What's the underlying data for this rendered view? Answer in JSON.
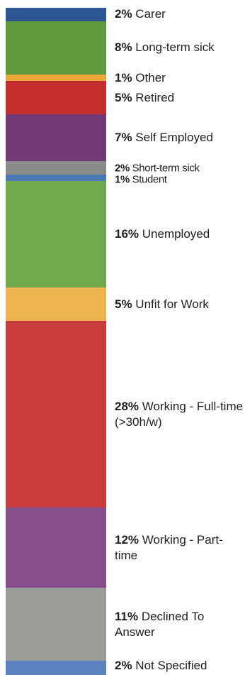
{
  "chart_data": {
    "type": "bar",
    "orientation": "stacked-vertical",
    "title": "",
    "xlabel": "",
    "ylabel": "",
    "total_percent": 100,
    "categories": [
      "Carer",
      "Long-term sick",
      "Other",
      "Retired",
      "Self Employed",
      "Short-term sick",
      "Student",
      "Unemployed",
      "Unfit for Work",
      "Working - Full-time (>30h/w)",
      "Working - Part-time",
      "Declined To Answer",
      "Not Specified"
    ],
    "percent_labels": [
      "2%",
      "8%",
      "1%",
      "5%",
      "7%",
      "2%",
      "1%",
      "16%",
      "5%",
      "28%",
      "12%",
      "11%",
      "2%"
    ],
    "values": [
      2,
      8,
      1,
      5,
      7,
      2,
      1,
      16,
      5,
      28,
      12,
      11,
      2
    ],
    "colors": [
      "#2d5594",
      "#5f9a3d",
      "#e8a83a",
      "#c42d2d",
      "#713a76",
      "#8a8a8a",
      "#4a78b3",
      "#72a94c",
      "#edb44f",
      "#c93c3c",
      "#874e8c",
      "#9b9b97",
      "#5b82bf"
    ],
    "value_precision_percent": 2.1
  }
}
